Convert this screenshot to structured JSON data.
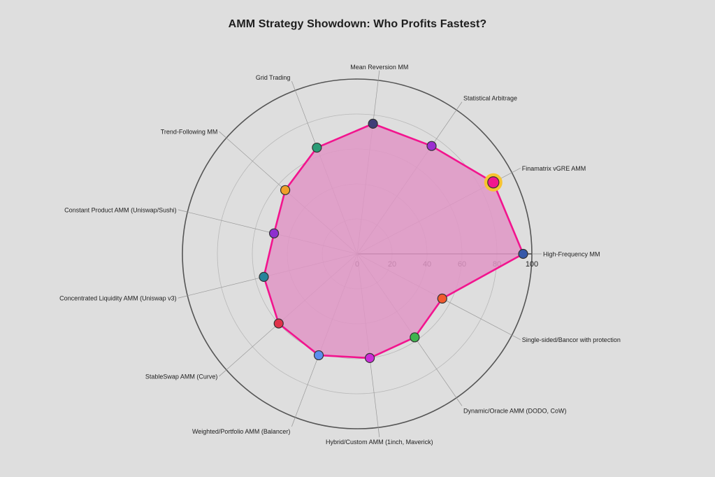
{
  "chart_data": {
    "type": "radar",
    "title": "AMM Strategy Showdown: Who Profits Fastest?",
    "range": [
      0,
      100
    ],
    "ticks": [
      0,
      20,
      40,
      60,
      80,
      100
    ],
    "grid": true,
    "categories": [
      "High-Frequency MM",
      "Finamatrix vGRE AMM",
      "Statistical Arbitrage",
      "Mean Reversion MM",
      "Grid Trading",
      "Trend-Following MM",
      "Constant Product AMM (Uniswap/Sushi)",
      "Concentrated Liquidity AMM (Uniswap v3)",
      "StableSwap AMM (Curve)",
      "Weighted/Portfolio AMM (Balancer)",
      "Hybrid/Custom AMM (1inch, Maverick)",
      "Dynamic/Oracle AMM (DODO, CoW)",
      "Single-sided/Bancor with protection"
    ],
    "series": [
      {
        "values": [
          95,
          88,
          75,
          75,
          65,
          55,
          49,
          55,
          60,
          62,
          60,
          58,
          55
        ],
        "line_color": "#f2148e",
        "fill_color": "#e096c6",
        "highlight_index": 1,
        "highlight_color": "#f7c430"
      }
    ],
    "point_colors": [
      "#3558a8",
      "#f2168e",
      "#9b2fd0",
      "#3f3e78",
      "#2a9c76",
      "#f0a02a",
      "#8e2fcf",
      "#27849a",
      "#e0324a",
      "#5b8ef0",
      "#cc2ed8",
      "#3fb44e",
      "#f25a2e"
    ]
  }
}
